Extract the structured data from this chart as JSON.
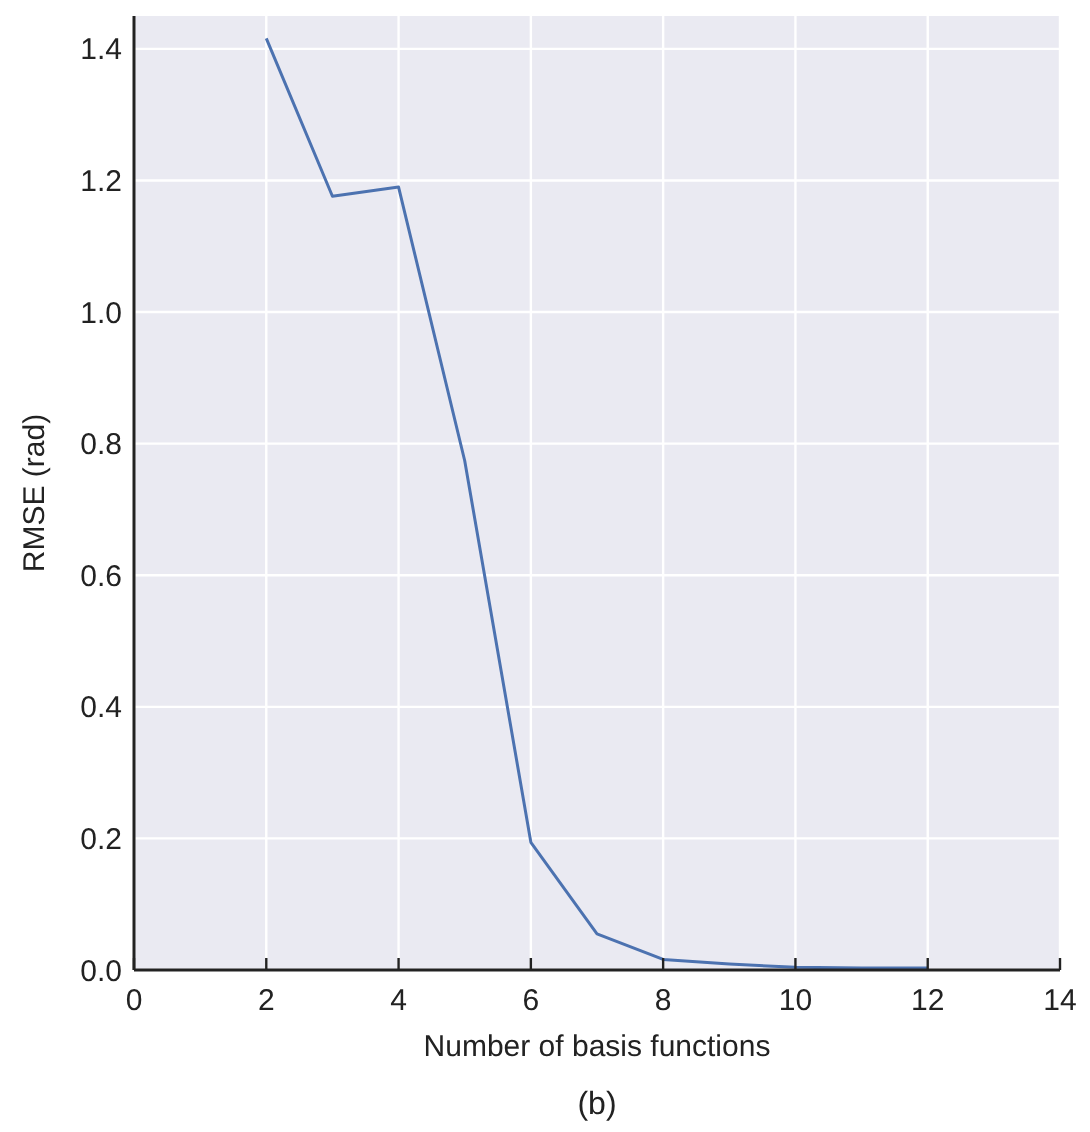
{
  "chart_data": {
    "type": "line",
    "xlabel": "Number of basis functions",
    "ylabel": "RMSE (rad)",
    "annotations": [
      "(b)"
    ],
    "x": [
      2,
      3,
      4,
      5,
      6,
      7,
      8,
      9,
      10,
      11,
      12
    ],
    "series": [
      {
        "color": "#4c72b0",
        "values": [
          1.416,
          1.176,
          1.19,
          0.774,
          0.194,
          0.055,
          0.016,
          0.009,
          0.004,
          0.003,
          0.003
        ]
      }
    ],
    "xlim": [
      0,
      14
    ],
    "xticks": [
      0,
      2,
      4,
      6,
      8,
      10,
      12,
      14
    ],
    "ylim": [
      0,
      1.45
    ],
    "yticks": [
      {
        "value": 0,
        "label": "0.0"
      },
      0.2,
      0.4,
      0.6,
      0.8,
      {
        "value": 1,
        "label": "1.0"
      },
      1.2,
      1.4
    ],
    "grid": true,
    "marker": "none",
    "line_style": "solid"
  }
}
